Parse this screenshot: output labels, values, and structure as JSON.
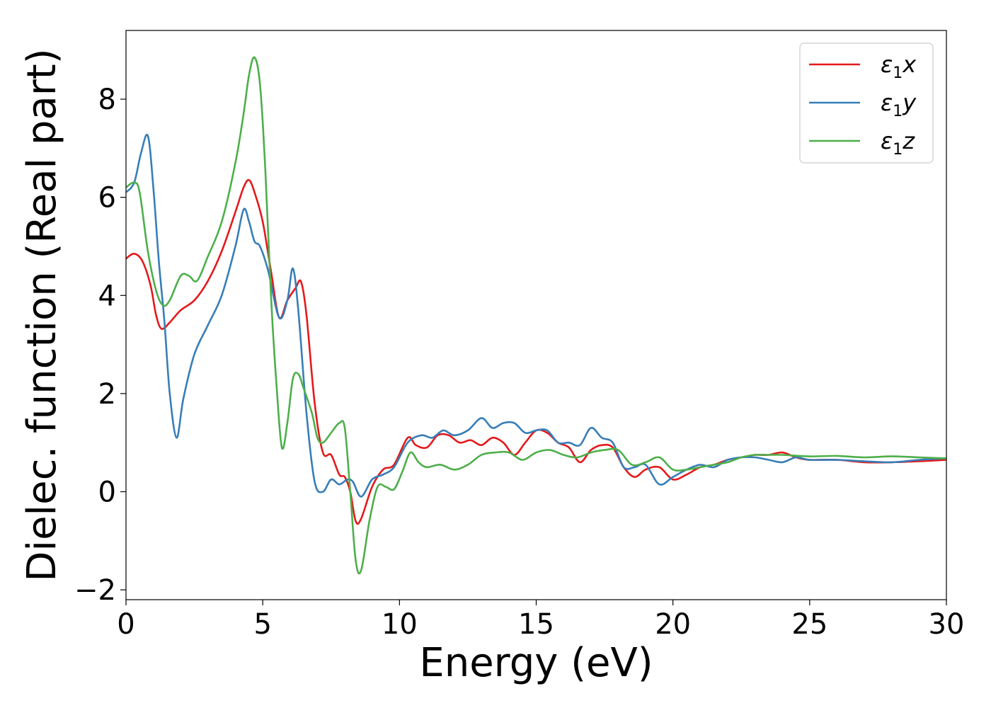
{
  "chart_data": {
    "type": "line",
    "xlabel": "Energy (eV)",
    "ylabel": "Dielec. function (Real part)",
    "xlim": [
      0,
      30
    ],
    "ylim": [
      -2.2,
      9.4
    ],
    "xticks": [
      0,
      5,
      10,
      15,
      20,
      25,
      30
    ],
    "xtick_labels": [
      "0",
      "5",
      "10",
      "15",
      "20",
      "25",
      "30"
    ],
    "yticks": [
      -2,
      0,
      2,
      4,
      6,
      8
    ],
    "ytick_labels": [
      "−2",
      "0",
      "2",
      "4",
      "6",
      "8"
    ],
    "grid": false,
    "legend_position": "top-right",
    "series": [
      {
        "name": "ε₁x",
        "legend_parts": [
          "ε",
          "1",
          "x"
        ],
        "color": "#e41a1c",
        "x": [
          0,
          0.3,
          0.6,
          0.9,
          1.1,
          1.3,
          1.6,
          2.0,
          2.5,
          3.0,
          3.5,
          4.0,
          4.3,
          4.5,
          4.7,
          5.0,
          5.3,
          5.6,
          5.9,
          6.2,
          6.4,
          6.6,
          6.9,
          7.2,
          7.5,
          7.8,
          8.0,
          8.2,
          8.4,
          8.6,
          9.0,
          9.4,
          9.8,
          10.3,
          10.6,
          11.0,
          11.4,
          11.8,
          12.2,
          12.6,
          13.0,
          13.4,
          13.8,
          14.2,
          14.6,
          15.0,
          15.4,
          15.8,
          16.2,
          16.6,
          17.0,
          17.4,
          17.8,
          18.2,
          18.6,
          19.0,
          19.5,
          20.0,
          20.5,
          21.0,
          21.5,
          22.0,
          22.5,
          23.0,
          23.5,
          24.0,
          24.5,
          25.0,
          26.0,
          27.0,
          28.0,
          29.0,
          30.0
        ],
        "y": [
          4.75,
          4.85,
          4.7,
          4.2,
          3.6,
          3.32,
          3.45,
          3.7,
          3.9,
          4.3,
          4.9,
          5.7,
          6.2,
          6.35,
          6.1,
          5.5,
          4.5,
          3.55,
          3.9,
          4.15,
          4.28,
          3.6,
          1.8,
          0.8,
          0.75,
          0.35,
          0.3,
          0.0,
          -0.6,
          -0.55,
          0.1,
          0.45,
          0.55,
          1.1,
          0.95,
          0.9,
          1.15,
          1.15,
          1.0,
          1.05,
          0.95,
          1.1,
          1.0,
          0.75,
          1.0,
          1.25,
          1.2,
          1.0,
          0.9,
          0.6,
          0.85,
          0.95,
          0.9,
          0.5,
          0.3,
          0.45,
          0.5,
          0.25,
          0.35,
          0.5,
          0.55,
          0.65,
          0.7,
          0.75,
          0.75,
          0.8,
          0.7,
          0.65,
          0.65,
          0.6,
          0.6,
          0.62,
          0.65
        ]
      },
      {
        "name": "ε₁y",
        "legend_parts": [
          "ε",
          "1",
          "y"
        ],
        "color": "#377eb8",
        "x": [
          0,
          0.3,
          0.55,
          0.8,
          1.0,
          1.2,
          1.4,
          1.6,
          1.85,
          2.1,
          2.5,
          3.0,
          3.5,
          4.0,
          4.3,
          4.5,
          4.7,
          4.9,
          5.2,
          5.6,
          5.9,
          6.1,
          6.3,
          6.6,
          6.9,
          7.2,
          7.5,
          7.8,
          8.1,
          8.3,
          8.6,
          9.0,
          9.4,
          9.8,
          10.3,
          10.8,
          11.2,
          11.6,
          12.0,
          12.5,
          13.0,
          13.4,
          13.8,
          14.2,
          14.6,
          15.0,
          15.4,
          15.8,
          16.2,
          16.6,
          17.0,
          17.4,
          17.8,
          18.2,
          18.6,
          19.0,
          19.5,
          20.0,
          20.5,
          21.0,
          21.5,
          22.0,
          22.5,
          23.0,
          23.5,
          24.0,
          24.5,
          25.0,
          26.0,
          27.0,
          28.0,
          29.0,
          30.0
        ],
        "y": [
          6.1,
          6.3,
          6.9,
          7.25,
          6.2,
          4.7,
          3.5,
          2.0,
          1.1,
          1.9,
          2.8,
          3.4,
          4.0,
          5.0,
          5.75,
          5.5,
          5.1,
          5.0,
          4.5,
          3.55,
          3.9,
          4.55,
          3.7,
          1.6,
          0.2,
          0.0,
          0.25,
          0.15,
          0.25,
          0.2,
          -0.1,
          0.25,
          0.35,
          0.5,
          1.0,
          1.15,
          1.1,
          1.25,
          1.15,
          1.25,
          1.5,
          1.3,
          1.4,
          1.4,
          1.2,
          1.25,
          1.25,
          1.0,
          1.0,
          0.95,
          1.3,
          1.1,
          1.0,
          0.5,
          0.5,
          0.55,
          0.15,
          0.3,
          0.45,
          0.55,
          0.5,
          0.65,
          0.7,
          0.7,
          0.65,
          0.6,
          0.7,
          0.65,
          0.65,
          0.62,
          0.6,
          0.65,
          0.68
        ]
      },
      {
        "name": "ε₁z",
        "legend_parts": [
          "ε",
          "1",
          "z"
        ],
        "color": "#4daf4a",
        "x": [
          0,
          0.3,
          0.5,
          0.8,
          1.1,
          1.35,
          1.6,
          2.0,
          2.3,
          2.6,
          3.0,
          3.5,
          4.0,
          4.3,
          4.5,
          4.7,
          4.9,
          5.1,
          5.3,
          5.5,
          5.7,
          5.9,
          6.1,
          6.3,
          6.5,
          6.8,
          7.0,
          7.2,
          7.5,
          7.8,
          8.0,
          8.2,
          8.4,
          8.6,
          8.9,
          9.2,
          9.5,
          9.8,
          10.1,
          10.4,
          10.7,
          11.0,
          11.5,
          12.0,
          12.5,
          13.0,
          13.5,
          14.0,
          14.5,
          15.0,
          15.5,
          16.0,
          16.5,
          17.0,
          17.5,
          18.0,
          18.5,
          19.0,
          19.5,
          20.0,
          20.5,
          21.0,
          21.5,
          22.0,
          22.5,
          23.0,
          23.5,
          24.0,
          25.0,
          26.0,
          27.0,
          28.0,
          29.0,
          30.0
        ],
        "y": [
          6.2,
          6.3,
          6.1,
          4.9,
          4.1,
          3.8,
          3.9,
          4.4,
          4.4,
          4.3,
          4.8,
          5.5,
          6.7,
          7.7,
          8.5,
          8.85,
          8.3,
          6.5,
          4.0,
          2.2,
          0.9,
          1.4,
          2.3,
          2.4,
          2.1,
          1.6,
          1.1,
          1.0,
          1.2,
          1.4,
          1.3,
          0.0,
          -1.4,
          -1.6,
          -0.6,
          0.1,
          0.1,
          0.05,
          0.4,
          0.8,
          0.6,
          0.5,
          0.55,
          0.45,
          0.55,
          0.75,
          0.8,
          0.8,
          0.65,
          0.8,
          0.85,
          0.75,
          0.7,
          0.8,
          0.85,
          0.85,
          0.55,
          0.6,
          0.7,
          0.45,
          0.45,
          0.5,
          0.55,
          0.6,
          0.7,
          0.75,
          0.75,
          0.75,
          0.72,
          0.73,
          0.7,
          0.72,
          0.7,
          0.68
        ]
      }
    ]
  }
}
